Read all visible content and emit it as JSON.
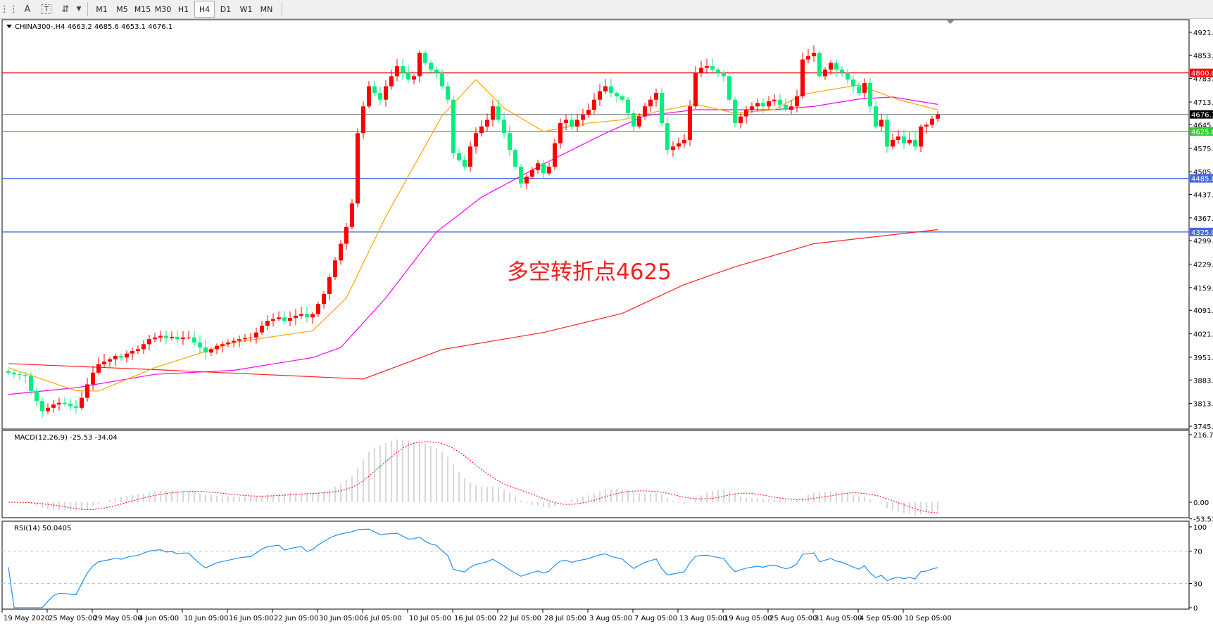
{
  "toolbar": {
    "icons": [
      "grid-icon",
      "text-A-icon",
      "text-label-icon",
      "arrows-icon",
      "dropdown-arrow-icon"
    ],
    "text_icon_label": "A",
    "timeframes": [
      "M1",
      "M5",
      "M15",
      "M30",
      "H1",
      "H4",
      "D1",
      "W1",
      "MN"
    ],
    "active_timeframe": "H4"
  },
  "chart_data": {
    "type": "candlestick",
    "symbol_header": "CHINA300-,H4  4663.2 4685.6 4653.1 4676.1",
    "last_bar": {
      "open": 4663.2,
      "high": 4685.6,
      "low": 4653.1,
      "close": 4676.1
    },
    "colors": {
      "up": "#ff0000",
      "down": "#00f080",
      "ma_fast": "#ffa500",
      "ma_mid": "#ff00ff",
      "ma_slow": "#ff2020"
    },
    "closes": [
      3905,
      3900,
      3898,
      3895,
      3850,
      3820,
      3790,
      3800,
      3810,
      3815,
      3812,
      3805,
      3800,
      3830,
      3870,
      3905,
      3930,
      3938,
      3945,
      3955,
      3950,
      3962,
      3970,
      3975,
      3990,
      4005,
      4010,
      4015,
      4008,
      4012,
      4005,
      4010,
      4010,
      3995,
      3980,
      3965,
      3975,
      3985,
      3990,
      3995,
      4000,
      4005,
      4008,
      4010,
      4025,
      4045,
      4060,
      4065,
      4070,
      4060,
      4068,
      4075,
      4080,
      4070,
      4080,
      4110,
      4140,
      4190,
      4240,
      4290,
      4340,
      4410,
      4620,
      4700,
      4760,
      4740,
      4720,
      4760,
      4790,
      4820,
      4800,
      4780,
      4790,
      4860,
      4830,
      4810,
      4800,
      4760,
      4720,
      4560,
      4540,
      4520,
      4580,
      4620,
      4640,
      4660,
      4700,
      4660,
      4620,
      4570,
      4520,
      4470,
      4490,
      4510,
      4530,
      4500,
      4520,
      4590,
      4650,
      4660,
      4640,
      4660,
      4675,
      4690,
      4720,
      4745,
      4760,
      4740,
      4730,
      4720,
      4680,
      4640,
      4670,
      4700,
      4720,
      4740,
      4650,
      4570,
      4580,
      4590,
      4600,
      4700,
      4800,
      4815,
      4820,
      4810,
      4800,
      4790,
      4720,
      4650,
      4670,
      4690,
      4700,
      4710,
      4700,
      4715,
      4720,
      4705,
      4690,
      4700,
      4730,
      4840,
      4850,
      4860,
      4790,
      4810,
      4830,
      4810,
      4800,
      4780,
      4760,
      4740,
      4770,
      4700,
      4640,
      4660,
      4580,
      4600,
      4610,
      4590,
      4600,
      4580,
      4640,
      4645,
      4663.2,
      4676.1
    ],
    "moving_averages": {
      "fast": [
        [
          0,
          3920
        ],
        [
          12,
          3851
        ],
        [
          16,
          3850
        ],
        [
          26,
          3920
        ],
        [
          40,
          3995
        ],
        [
          54,
          4030
        ],
        [
          60,
          4128
        ],
        [
          67,
          4371
        ],
        [
          77,
          4672
        ],
        [
          83,
          4780
        ],
        [
          88,
          4695
        ],
        [
          95,
          4625
        ],
        [
          103,
          4650
        ],
        [
          109,
          4660
        ],
        [
          116,
          4688
        ],
        [
          122,
          4706
        ],
        [
          129,
          4680
        ],
        [
          136,
          4690
        ],
        [
          141,
          4736
        ],
        [
          151,
          4764
        ],
        [
          158,
          4720
        ],
        [
          165,
          4690
        ]
      ],
      "mid": [
        [
          0,
          3840
        ],
        [
          12,
          3860
        ],
        [
          26,
          3900
        ],
        [
          40,
          3912
        ],
        [
          54,
          3950
        ],
        [
          59,
          3980
        ],
        [
          67,
          4128
        ],
        [
          76,
          4325
        ],
        [
          84,
          4429
        ],
        [
          95,
          4528
        ],
        [
          106,
          4620
        ],
        [
          113,
          4672
        ],
        [
          122,
          4690
        ],
        [
          136,
          4690
        ],
        [
          143,
          4700
        ],
        [
          151,
          4722
        ],
        [
          157,
          4728
        ],
        [
          165,
          4706
        ]
      ],
      "slow": [
        [
          0,
          3932
        ],
        [
          26,
          3914
        ],
        [
          63,
          3886
        ],
        [
          77,
          3974
        ],
        [
          95,
          4025
        ],
        [
          109,
          4082
        ],
        [
          120,
          4168
        ],
        [
          129,
          4221
        ],
        [
          143,
          4290
        ],
        [
          165,
          4332
        ]
      ]
    },
    "price_axis": {
      "ticks": [
        4921.0,
        4853.0,
        4783.0,
        4713.0,
        4645.0,
        4575.0,
        4505.0,
        4437.0,
        4367.0,
        4299.0,
        4229.0,
        4159.0,
        4091.0,
        4021.0,
        3951.0,
        3883.0,
        3813.0,
        3745.0
      ],
      "range": [
        3745.0,
        4921.0
      ]
    },
    "horizontal_lines": [
      {
        "value": 4800.0,
        "label": "4800.0",
        "color": "#ff0000"
      },
      {
        "value": 4676.1,
        "label": "4676.1",
        "color": "#000000",
        "line_color": "#8c9096"
      },
      {
        "value": 4625.0,
        "label": "4625.0",
        "color": "#33cc33"
      },
      {
        "value": 4485.0,
        "label": "4485.0",
        "color": "#4169e1"
      },
      {
        "value": 4325.0,
        "label": "4325.0",
        "color": "#4169e1"
      }
    ],
    "annotation": "多空转折点4625",
    "macd": {
      "label": "MACD(12,26,9) -25.53 -34.04",
      "axis_ticks": [
        "216.78",
        "0.00",
        "-53.53"
      ],
      "range": [
        -53.53,
        216.78
      ]
    },
    "rsi": {
      "label": "RSI(14) 50.0405",
      "axis_ticks": [
        "100",
        "70",
        "30",
        "0"
      ],
      "levels": [
        70,
        30
      ]
    },
    "time_axis": [
      "19 May 2020",
      "25 May 05:00",
      "29 May 05:00",
      "4 Jun 05:00",
      "10 Jun 05:00",
      "16 Jun 05:00",
      "22 Jun 05:00",
      "30 Jun 05:00",
      "6 Jul 05:00",
      "10 Jul 05:00",
      "16 Jul 05:00",
      "22 Jul 05:00",
      "28 Jul 05:00",
      "3 Aug 05:00",
      "7 Aug 05:00",
      "13 Aug 05:00",
      "19 Aug 05:00",
      "25 Aug 05:00",
      "31 Aug 05:00",
      "4 Sep 05:00",
      "10 Sep 05:00"
    ]
  }
}
